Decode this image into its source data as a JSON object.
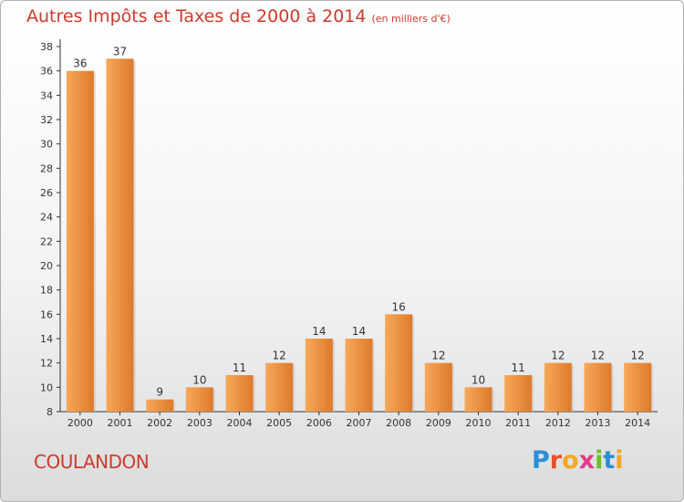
{
  "header": {
    "title": "Autres Impôts et Taxes de 2000 à 2014",
    "subtitle": "(en milliers d'€)"
  },
  "footer": {
    "place": "COULANDON",
    "logo_letters": [
      "P",
      "r",
      "o",
      "x",
      "i",
      "t",
      "i"
    ],
    "logo_colors": [
      "#2a8fd8",
      "#e94f2a",
      "#f5a623",
      "#e23b8a",
      "#6cbf2c",
      "#2a8fd8",
      "#f5a623"
    ]
  },
  "chart_data": {
    "type": "bar",
    "title": "Autres Impôts et Taxes de 2000 à 2014",
    "subtitle": "(en milliers d'€)",
    "categories": [
      "2000",
      "2001",
      "2002",
      "2003",
      "2004",
      "2005",
      "2006",
      "2007",
      "2008",
      "2009",
      "2010",
      "2011",
      "2012",
      "2013",
      "2014"
    ],
    "values": [
      36,
      37,
      9,
      10,
      11,
      12,
      14,
      14,
      16,
      12,
      10,
      11,
      12,
      12,
      12
    ],
    "ylim": [
      8,
      38
    ],
    "yticks": [
      8,
      10,
      12,
      14,
      16,
      18,
      20,
      22,
      24,
      26,
      28,
      30,
      32,
      34,
      36,
      38
    ],
    "bar_color_light": "#f7a85a",
    "bar_color_dark": "#dd7a2a",
    "grid": false
  }
}
